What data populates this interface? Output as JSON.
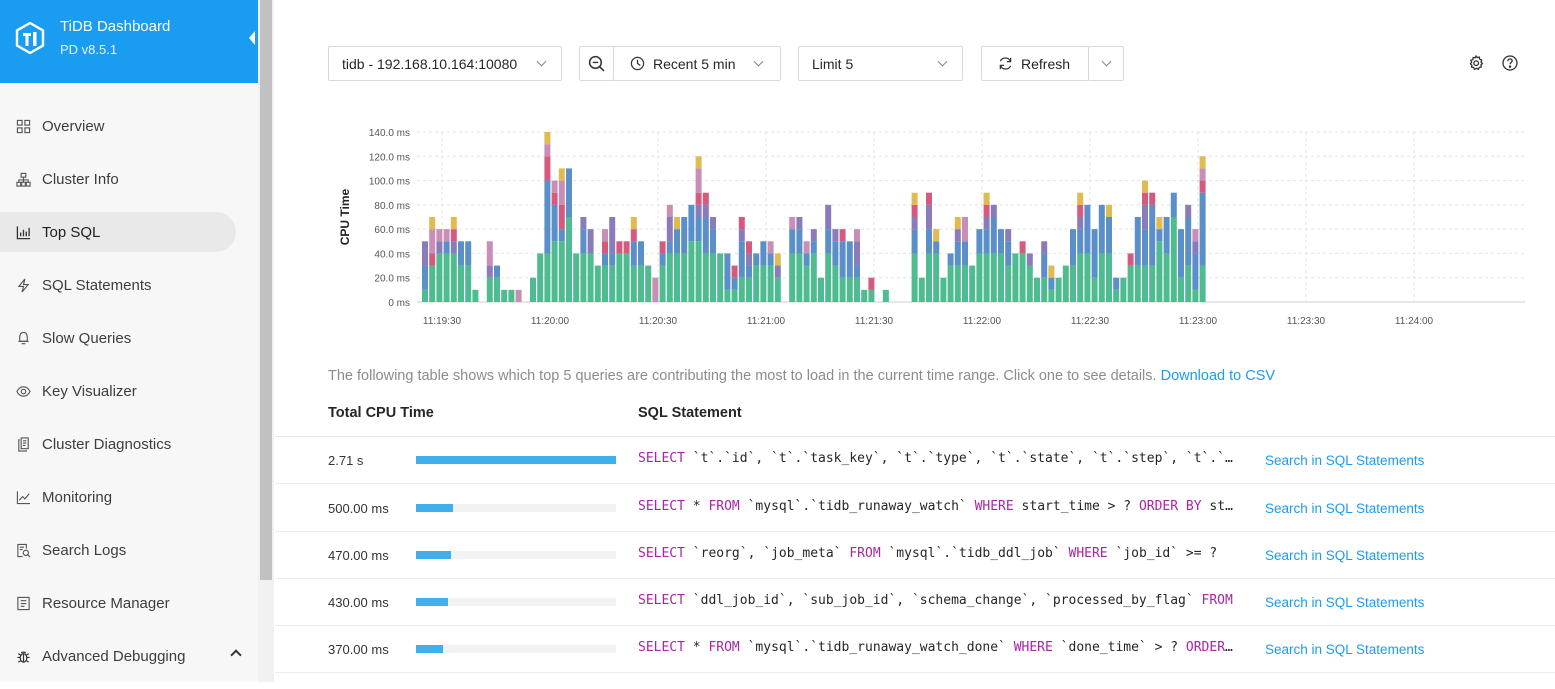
{
  "brand": {
    "title": "TiDB Dashboard",
    "version": "PD v8.5.1"
  },
  "sidebar": {
    "items": [
      {
        "label": "Overview",
        "icon": "overview-icon",
        "active": false
      },
      {
        "label": "Cluster Info",
        "icon": "cluster-info-icon",
        "active": false
      },
      {
        "label": "Top SQL",
        "icon": "bar-chart-icon",
        "active": true
      },
      {
        "label": "SQL Statements",
        "icon": "lightning-icon",
        "active": false
      },
      {
        "label": "Slow Queries",
        "icon": "slow-queries-icon",
        "active": false
      },
      {
        "label": "Key Visualizer",
        "icon": "eye-icon",
        "active": false
      },
      {
        "label": "Cluster Diagnostics",
        "icon": "diagnostics-icon",
        "active": false
      },
      {
        "label": "Monitoring",
        "icon": "line-chart-icon",
        "active": false
      },
      {
        "label": "Search Logs",
        "icon": "search-logs-icon",
        "active": false
      },
      {
        "label": "Resource Manager",
        "icon": "resource-manager-icon",
        "active": false
      },
      {
        "label": "Advanced Debugging",
        "icon": "bug-icon",
        "active": false,
        "expandable": true
      }
    ]
  },
  "toolbar": {
    "instance": "tidb - 192.168.10.164:10080",
    "time_range": "Recent 5 min",
    "limit": "Limit 5",
    "refresh": "Refresh"
  },
  "description": {
    "text": "The following table shows which top 5 queries are contributing the most to load in the current time range. Click one to see details.",
    "link": "Download to CSV"
  },
  "table": {
    "headers": {
      "cpu": "Total CPU Time",
      "sql": "SQL Statement"
    },
    "link_label": "Search in SQL Statements",
    "rows": [
      {
        "cpu": "2.71 s",
        "ratio": 1.0,
        "sql": "SELECT `t`.`id`, `t`.`task_key`, `t`.`type`, `t`.`state`, `t`.`step`, `t`.`priority`"
      },
      {
        "cpu": "500.00 ms",
        "ratio": 0.185,
        "sql": "SELECT * FROM `mysql`.`tidb_runaway_watch` WHERE start_time > ? ORDER BY start_time"
      },
      {
        "cpu": "470.00 ms",
        "ratio": 0.173,
        "sql": "SELECT `reorg`, `job_meta` FROM `mysql`.`tidb_ddl_job` WHERE `job_id` >= ?"
      },
      {
        "cpu": "430.00 ms",
        "ratio": 0.159,
        "sql": "SELECT `ddl_job_id`, `sub_job_id`, `schema_change`, `processed_by_flag` FROM"
      },
      {
        "cpu": "370.00 ms",
        "ratio": 0.137,
        "sql": "SELECT * FROM `mysql`.`tidb_runaway_watch_done` WHERE `done_time` > ? ORDER BY"
      }
    ]
  },
  "chart_data": {
    "type": "bar",
    "stacked": true,
    "ylabel": "CPU Time",
    "ylim": [
      0,
      140
    ],
    "y_unit": "ms",
    "y_ticks": [
      "0 ms",
      "20.0 ms",
      "40.0 ms",
      "60.0 ms",
      "80.0 ms",
      "100.0 ms",
      "120.0 ms",
      "140.0 ms"
    ],
    "x_ticks": [
      "11:19:30",
      "11:20:00",
      "11:20:30",
      "11:21:00",
      "11:21:30",
      "11:22:00",
      "11:22:30",
      "11:23:00",
      "11:23:30",
      "11:24:00"
    ],
    "grid": true,
    "series_colors": [
      "#4fbb91",
      "#5b8fc7",
      "#8a7cb8",
      "#d65a7e",
      "#c98eb5",
      "#dfbb52"
    ],
    "stacks": [
      [
        10,
        20,
        20,
        0,
        0,
        0
      ],
      [
        30,
        0,
        0,
        10,
        20,
        10
      ],
      [
        40,
        0,
        10,
        0,
        10,
        0
      ],
      [
        40,
        10,
        0,
        0,
        10,
        0
      ],
      [
        40,
        0,
        10,
        10,
        0,
        10
      ],
      [
        30,
        20,
        0,
        0,
        0,
        0
      ],
      [
        30,
        20,
        0,
        0,
        0,
        0
      ],
      [
        10,
        0,
        0,
        0,
        0,
        0
      ],
      [
        0,
        0,
        0,
        0,
        0,
        0
      ],
      [
        20,
        0,
        10,
        0,
        20,
        0
      ],
      [
        20,
        10,
        0,
        0,
        0,
        0
      ],
      [
        10,
        0,
        0,
        0,
        0,
        0
      ],
      [
        10,
        0,
        0,
        0,
        0,
        0
      ],
      [
        0,
        0,
        0,
        0,
        10,
        0
      ],
      [
        0,
        0,
        0,
        0,
        0,
        0
      ],
      [
        20,
        0,
        0,
        0,
        0,
        0
      ],
      [
        40,
        0,
        0,
        0,
        0,
        0
      ],
      [
        40,
        60,
        0,
        20,
        10,
        10
      ],
      [
        50,
        30,
        0,
        10,
        10,
        0
      ],
      [
        50,
        10,
        0,
        20,
        20,
        10
      ],
      [
        70,
        40,
        0,
        0,
        0,
        0
      ],
      [
        40,
        0,
        0,
        0,
        0,
        0
      ],
      [
        40,
        20,
        10,
        0,
        0,
        0
      ],
      [
        40,
        0,
        20,
        0,
        0,
        0
      ],
      [
        30,
        0,
        0,
        0,
        0,
        0
      ],
      [
        30,
        10,
        0,
        10,
        10,
        0
      ],
      [
        30,
        10,
        30,
        0,
        0,
        0
      ],
      [
        40,
        0,
        0,
        10,
        0,
        0
      ],
      [
        40,
        0,
        0,
        10,
        0,
        0
      ],
      [
        30,
        20,
        0,
        10,
        0,
        10
      ],
      [
        30,
        20,
        0,
        0,
        0,
        0
      ],
      [
        30,
        0,
        0,
        0,
        0,
        0
      ],
      [
        0,
        0,
        0,
        0,
        20,
        0
      ],
      [
        30,
        10,
        0,
        10,
        0,
        0
      ],
      [
        40,
        10,
        20,
        0,
        10,
        0
      ],
      [
        40,
        20,
        0,
        0,
        0,
        10
      ],
      [
        40,
        30,
        0,
        0,
        0,
        0
      ],
      [
        50,
        30,
        0,
        0,
        0,
        0
      ],
      [
        50,
        20,
        10,
        10,
        20,
        10
      ],
      [
        40,
        30,
        10,
        10,
        0,
        0
      ],
      [
        40,
        20,
        10,
        0,
        0,
        0
      ],
      [
        40,
        0,
        0,
        0,
        0,
        0
      ],
      [
        10,
        30,
        0,
        0,
        0,
        0
      ],
      [
        10,
        10,
        0,
        10,
        0,
        0
      ],
      [
        20,
        30,
        10,
        10,
        0,
        0
      ],
      [
        20,
        10,
        10,
        10,
        0,
        0
      ],
      [
        30,
        10,
        0,
        0,
        0,
        0
      ],
      [
        30,
        20,
        0,
        0,
        0,
        0
      ],
      [
        30,
        10,
        0,
        0,
        10,
        0
      ],
      [
        20,
        0,
        10,
        0,
        0,
        10
      ],
      [
        0,
        0,
        0,
        0,
        0,
        0
      ],
      [
        40,
        20,
        0,
        0,
        10,
        0
      ],
      [
        40,
        20,
        10,
        0,
        0,
        0
      ],
      [
        30,
        10,
        0,
        0,
        10,
        0
      ],
      [
        40,
        10,
        10,
        0,
        0,
        0
      ],
      [
        20,
        0,
        0,
        0,
        0,
        0
      ],
      [
        40,
        20,
        20,
        0,
        0,
        0
      ],
      [
        30,
        20,
        10,
        0,
        0,
        0
      ],
      [
        20,
        30,
        0,
        10,
        0,
        0
      ],
      [
        20,
        30,
        0,
        0,
        0,
        0
      ],
      [
        20,
        10,
        20,
        0,
        10,
        0
      ],
      [
        10,
        0,
        0,
        0,
        0,
        0
      ],
      [
        10,
        0,
        0,
        10,
        0,
        0
      ],
      [
        0,
        0,
        0,
        0,
        0,
        0
      ],
      [
        10,
        0,
        0,
        0,
        0,
        0
      ],
      [
        0,
        0,
        0,
        0,
        0,
        0
      ],
      [
        0,
        0,
        0,
        0,
        0,
        0
      ],
      [
        0,
        0,
        0,
        0,
        0,
        0
      ],
      [
        40,
        20,
        10,
        10,
        0,
        10
      ],
      [
        20,
        0,
        0,
        0,
        0,
        0
      ],
      [
        40,
        20,
        20,
        10,
        0,
        0
      ],
      [
        40,
        10,
        0,
        0,
        0,
        10
      ],
      [
        20,
        0,
        0,
        0,
        0,
        0
      ],
      [
        30,
        10,
        0,
        0,
        0,
        0
      ],
      [
        30,
        20,
        10,
        0,
        0,
        10
      ],
      [
        30,
        20,
        0,
        0,
        20,
        0
      ],
      [
        30,
        0,
        0,
        0,
        0,
        0
      ],
      [
        40,
        20,
        0,
        0,
        0,
        0
      ],
      [
        40,
        20,
        10,
        10,
        0,
        10
      ],
      [
        40,
        30,
        10,
        0,
        0,
        0
      ],
      [
        40,
        20,
        0,
        0,
        0,
        0
      ],
      [
        30,
        20,
        10,
        0,
        0,
        0
      ],
      [
        40,
        0,
        0,
        0,
        0,
        0
      ],
      [
        40,
        0,
        0,
        10,
        0,
        0
      ],
      [
        30,
        0,
        10,
        0,
        0,
        0
      ],
      [
        20,
        0,
        0,
        0,
        0,
        0
      ],
      [
        20,
        20,
        10,
        0,
        0,
        0
      ],
      [
        10,
        10,
        0,
        0,
        0,
        10
      ],
      [
        20,
        0,
        0,
        0,
        0,
        0
      ],
      [
        30,
        0,
        0,
        0,
        0,
        0
      ],
      [
        30,
        30,
        0,
        0,
        0,
        0
      ],
      [
        40,
        20,
        10,
        10,
        0,
        10
      ],
      [
        40,
        40,
        0,
        0,
        0,
        0
      ],
      [
        20,
        40,
        0,
        0,
        0,
        0
      ],
      [
        40,
        40,
        0,
        0,
        0,
        0
      ],
      [
        40,
        30,
        0,
        0,
        0,
        10
      ],
      [
        10,
        10,
        0,
        0,
        0,
        0
      ],
      [
        20,
        0,
        0,
        0,
        0,
        0
      ],
      [
        30,
        0,
        0,
        10,
        0,
        0
      ],
      [
        30,
        40,
        0,
        0,
        0,
        0
      ],
      [
        30,
        30,
        20,
        10,
        0,
        10
      ],
      [
        30,
        50,
        0,
        10,
        0,
        0
      ],
      [
        50,
        10,
        0,
        0,
        0,
        10
      ],
      [
        40,
        30,
        0,
        0,
        0,
        0
      ],
      [
        70,
        20,
        0,
        0,
        0,
        0
      ],
      [
        20,
        40,
        0,
        0,
        0,
        0
      ],
      [
        30,
        40,
        10,
        0,
        0,
        0
      ],
      [
        10,
        30,
        10,
        0,
        10,
        0
      ],
      [
        30,
        60,
        0,
        10,
        10,
        10
      ]
    ]
  }
}
